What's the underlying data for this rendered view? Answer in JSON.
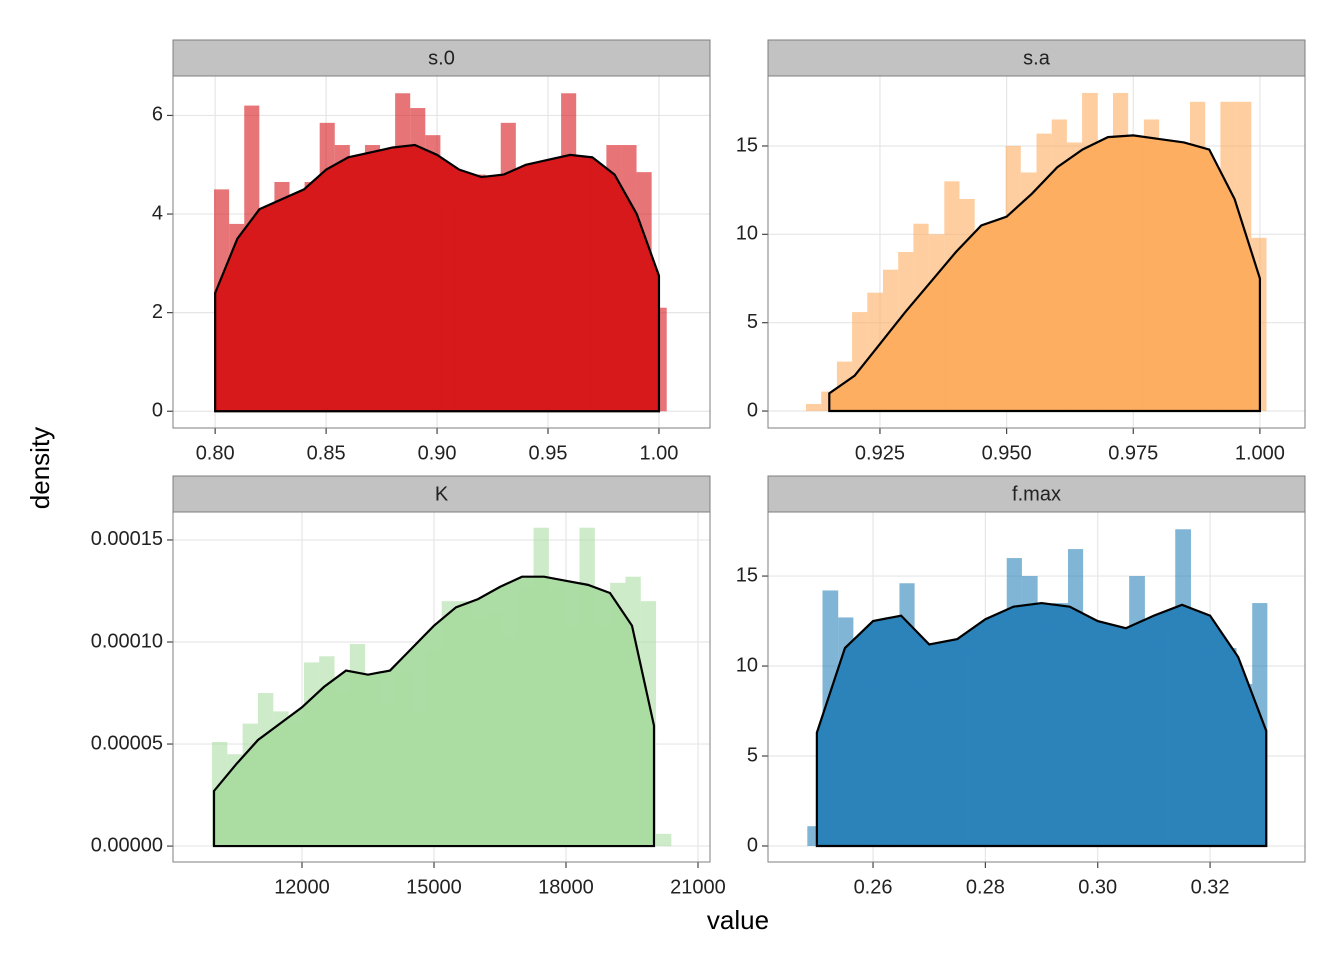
{
  "xlabel": "value",
  "ylabel": "density",
  "chart_data": [
    {
      "type": "histogram",
      "title": "s.0",
      "color": "#d7191c",
      "grid": true,
      "bins": [
        0.7995,
        0.8063,
        0.8131,
        0.8199,
        0.8267,
        0.8335,
        0.8403,
        0.8471,
        0.8539,
        0.8607,
        0.8675,
        0.8743,
        0.8811,
        0.8879,
        0.8947,
        0.9015,
        0.9083,
        0.9151,
        0.9219,
        0.9287,
        0.9355,
        0.9423,
        0.9491,
        0.9559,
        0.9627,
        0.9695,
        0.9763,
        0.9831,
        0.9899,
        0.9967,
        1.0035
      ],
      "values": [
        4.5,
        3.8,
        6.2,
        3.6,
        4.65,
        4.1,
        4.65,
        5.85,
        5.4,
        5.0,
        5.4,
        4.2,
        6.45,
        6.15,
        5.6,
        4.2,
        4.2,
        4.8,
        4.2,
        5.85,
        4.85,
        4.35,
        4.95,
        6.45,
        5.1,
        4.5,
        5.4,
        5.4,
        4.85,
        2.1
      ],
      "density": {
        "x": [
          0.8,
          0.81,
          0.82,
          0.83,
          0.84,
          0.85,
          0.86,
          0.87,
          0.88,
          0.89,
          0.9,
          0.91,
          0.92,
          0.93,
          0.94,
          0.95,
          0.96,
          0.97,
          0.98,
          0.99,
          1.0
        ],
        "values": [
          2.4,
          3.5,
          4.1,
          4.3,
          4.5,
          4.9,
          5.15,
          5.25,
          5.35,
          5.4,
          5.2,
          4.9,
          4.75,
          4.8,
          5.0,
          5.1,
          5.2,
          5.15,
          4.8,
          4.0,
          2.75
        ]
      },
      "xlim": [
        0.781,
        1.023
      ],
      "ylim": [
        -0.34,
        6.8
      ],
      "xticks": [
        {
          "value": 0.8,
          "label": "0.80"
        },
        0.85,
        {
          "value": 0.9,
          "label": "0.90"
        },
        0.95,
        {
          "value": 1,
          "label": "1.00"
        }
      ],
      "yticks": [
        0,
        2,
        4,
        6
      ]
    },
    {
      "type": "histogram",
      "title": "s.a",
      "color": "#fdae61",
      "grid": true,
      "bins": [
        0.9104,
        0.9134,
        0.9165,
        0.9195,
        0.9225,
        0.9256,
        0.9286,
        0.9316,
        0.9346,
        0.9377,
        0.9407,
        0.9437,
        0.9468,
        0.9498,
        0.9528,
        0.9559,
        0.9589,
        0.9619,
        0.9649,
        0.968,
        0.971,
        0.974,
        0.9771,
        0.9801,
        0.9831,
        0.9862,
        0.9892,
        0.9922,
        0.9952,
        0.9983,
        1.0013
      ],
      "values": [
        0.4,
        1.1,
        2.8,
        5.6,
        6.7,
        8.0,
        9.0,
        10.6,
        10.0,
        13.0,
        12.0,
        7.9,
        10.5,
        15.0,
        13.5,
        15.7,
        16.5,
        15.2,
        18.0,
        12.5,
        18.0,
        15.0,
        16.5,
        15.0,
        14.5,
        17.5,
        12.5,
        17.5,
        17.5,
        9.8
      ],
      "density": {
        "x": [
          0.915,
          0.92,
          0.925,
          0.93,
          0.935,
          0.94,
          0.945,
          0.95,
          0.955,
          0.96,
          0.965,
          0.97,
          0.975,
          0.98,
          0.985,
          0.99,
          0.995,
          1.0
        ],
        "values": [
          1.0,
          2.0,
          3.8,
          5.6,
          7.3,
          9.0,
          10.5,
          11.0,
          12.3,
          13.8,
          14.8,
          15.5,
          15.6,
          15.4,
          15.2,
          14.8,
          12.0,
          7.5
        ]
      },
      "xlim": [
        0.9029,
        1.0089
      ],
      "ylim": [
        -0.96,
        18.96
      ],
      "xticks": [
        0.925,
        {
          "value": 0.95,
          "label": "0.950"
        },
        0.975,
        {
          "value": 1,
          "label": "1.000"
        }
      ],
      "yticks": [
        0,
        5,
        10,
        15
      ]
    },
    {
      "type": "histogram",
      "title": "K",
      "color": "#abdda4",
      "grid": true,
      "bins": [
        9955,
        10303,
        10651,
        10999,
        11347,
        11695,
        12043,
        12391,
        12739,
        13087,
        13435,
        13783,
        14131,
        14479,
        14827,
        15175,
        15523,
        15871,
        16219,
        16567,
        16915,
        17263,
        17611,
        17959,
        18307,
        18655,
        19003,
        19351,
        19699,
        20047,
        20395
      ],
      "values": [
        5.1e-05,
        4.5e-05,
        6e-05,
        7.5e-05,
        6.6e-05,
        6e-05,
        9e-05,
        9.3e-05,
        7.5e-05,
        9.9e-05,
        8.4e-05,
        6.9e-05,
        8.6e-05,
        6.6e-05,
        9.6e-05,
        0.00012,
        0.00012,
        0.000111,
        0.000114,
        0.000102,
        0.000126,
        0.000156,
        0.000126,
        0.000108,
        0.000156,
        0.000108,
        0.000129,
        0.000132,
        0.00012,
        6e-06
      ],
      "density": {
        "x": [
          10000,
          10500,
          11000,
          11500,
          12000,
          12500,
          13000,
          13500,
          14000,
          14500,
          15000,
          15500,
          16000,
          16500,
          17000,
          17500,
          18000,
          18500,
          19000,
          19500,
          20000
        ],
        "values": [
          2.7e-05,
          4e-05,
          5.2e-05,
          6e-05,
          6.8e-05,
          7.8e-05,
          8.6e-05,
          8.4e-05,
          8.6e-05,
          9.7e-05,
          0.000108,
          0.000117,
          0.000121,
          0.000127,
          0.000132,
          0.000132,
          0.00013,
          0.000128,
          0.000124,
          0.000108,
          5.9e-05
        ]
      },
      "xlim": [
        9068,
        21273
      ],
      "ylim": [
        -7.8e-06,
        0.0001637
      ],
      "xticks": [
        12000,
        15000,
        18000,
        21000
      ],
      "yticks": [
        {
          "value": 0,
          "label": "0.00000"
        },
        {
          "value": 5e-05,
          "label": "0.00005"
        },
        {
          "value": 0.0001,
          "label": "0.00010"
        },
        {
          "value": 0.00015,
          "label": "0.00015"
        }
      ]
    },
    {
      "type": "histogram",
      "title": "f.max",
      "color": "#2b83ba",
      "grid": true,
      "bins": [
        0.2483,
        0.251,
        0.2538,
        0.2565,
        0.2592,
        0.262,
        0.2647,
        0.2674,
        0.2701,
        0.2729,
        0.2756,
        0.2783,
        0.2811,
        0.2838,
        0.2865,
        0.2893,
        0.292,
        0.2947,
        0.2974,
        0.3002,
        0.3029,
        0.3056,
        0.3084,
        0.3111,
        0.3138,
        0.3166,
        0.3193,
        0.322,
        0.3247,
        0.3275,
        0.3302
      ],
      "values": [
        1.1,
        14.2,
        12.7,
        11.3,
        9.0,
        12.7,
        14.6,
        9.0,
        11.2,
        11.2,
        11.0,
        11.3,
        12.0,
        16.0,
        15.0,
        12.3,
        13.5,
        16.5,
        12.0,
        9.0,
        11.0,
        15.0,
        11.2,
        12.0,
        17.6,
        12.8,
        11.0,
        11.0,
        9.0,
        13.5
      ],
      "density": {
        "x": [
          0.25,
          0.255,
          0.26,
          0.265,
          0.27,
          0.275,
          0.28,
          0.285,
          0.29,
          0.295,
          0.3,
          0.305,
          0.31,
          0.315,
          0.32,
          0.325,
          0.33
        ],
        "values": [
          6.3,
          11.0,
          12.5,
          12.8,
          11.2,
          11.5,
          12.6,
          13.3,
          13.5,
          13.3,
          12.5,
          12.1,
          12.8,
          13.4,
          12.8,
          10.5,
          6.4
        ]
      },
      "xlim": [
        0.2413,
        0.3369
      ],
      "ylim": [
        -0.89,
        18.56
      ],
      "xticks": [
        0.26,
        0.28,
        {
          "value": 0.3,
          "label": "0.30"
        },
        0.32
      ],
      "yticks": [
        0,
        5,
        10,
        15
      ]
    }
  ]
}
